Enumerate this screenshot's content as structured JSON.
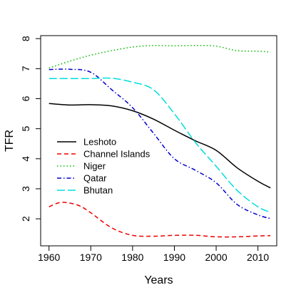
{
  "chart_data": {
    "type": "line",
    "xlabel": "Years",
    "ylabel": "TFR",
    "xlim": [
      1958,
      2014.5
    ],
    "ylim": [
      1.1,
      8.1
    ],
    "xticks": [
      1960,
      1970,
      1980,
      1990,
      2000,
      2010
    ],
    "yticks": [
      2,
      3,
      4,
      5,
      6,
      7,
      8
    ],
    "grid": false,
    "legend_position": "left-center",
    "series": [
      {
        "name": "Leshoto",
        "color": "#000000",
        "dash": "solid",
        "x": [
          1960,
          1965,
          1970,
          1975,
          1980,
          1985,
          1990,
          1995,
          2000,
          2005,
          2010,
          2013
        ],
        "values": [
          5.84,
          5.79,
          5.8,
          5.76,
          5.6,
          5.32,
          4.95,
          4.6,
          4.28,
          3.7,
          3.25,
          3.03
        ]
      },
      {
        "name": "Channel Islands",
        "color": "#ee0000",
        "dash": "dashed",
        "x": [
          1960,
          1963,
          1967,
          1970,
          1975,
          1980,
          1985,
          1990,
          1995,
          2000,
          2005,
          2010,
          2013
        ],
        "values": [
          2.4,
          2.55,
          2.45,
          2.2,
          1.7,
          1.45,
          1.42,
          1.45,
          1.45,
          1.4,
          1.4,
          1.43,
          1.44
        ]
      },
      {
        "name": "Niger",
        "color": "#00bb00",
        "dash": "dotted",
        "x": [
          1960,
          1965,
          1970,
          1975,
          1980,
          1985,
          1990,
          1995,
          2000,
          2005,
          2010,
          2013
        ],
        "values": [
          7.02,
          7.25,
          7.45,
          7.6,
          7.72,
          7.77,
          7.76,
          7.77,
          7.75,
          7.6,
          7.58,
          7.55
        ]
      },
      {
        "name": "Qatar",
        "color": "#0000cc",
        "dash": "dashdot",
        "x": [
          1960,
          1965,
          1970,
          1975,
          1980,
          1985,
          1990,
          1995,
          2000,
          2005,
          2010,
          2013
        ],
        "values": [
          6.97,
          6.98,
          6.88,
          6.3,
          5.7,
          4.85,
          4.0,
          3.62,
          3.2,
          2.48,
          2.13,
          2.01
        ]
      },
      {
        "name": "Bhutan",
        "color": "#00dddd",
        "dash": "longdash",
        "x": [
          1960,
          1965,
          1970,
          1975,
          1980,
          1985,
          1990,
          1995,
          2000,
          2005,
          2010,
          2013
        ],
        "values": [
          6.67,
          6.67,
          6.67,
          6.68,
          6.55,
          6.3,
          5.5,
          4.55,
          3.75,
          2.95,
          2.4,
          2.22
        ]
      }
    ]
  }
}
